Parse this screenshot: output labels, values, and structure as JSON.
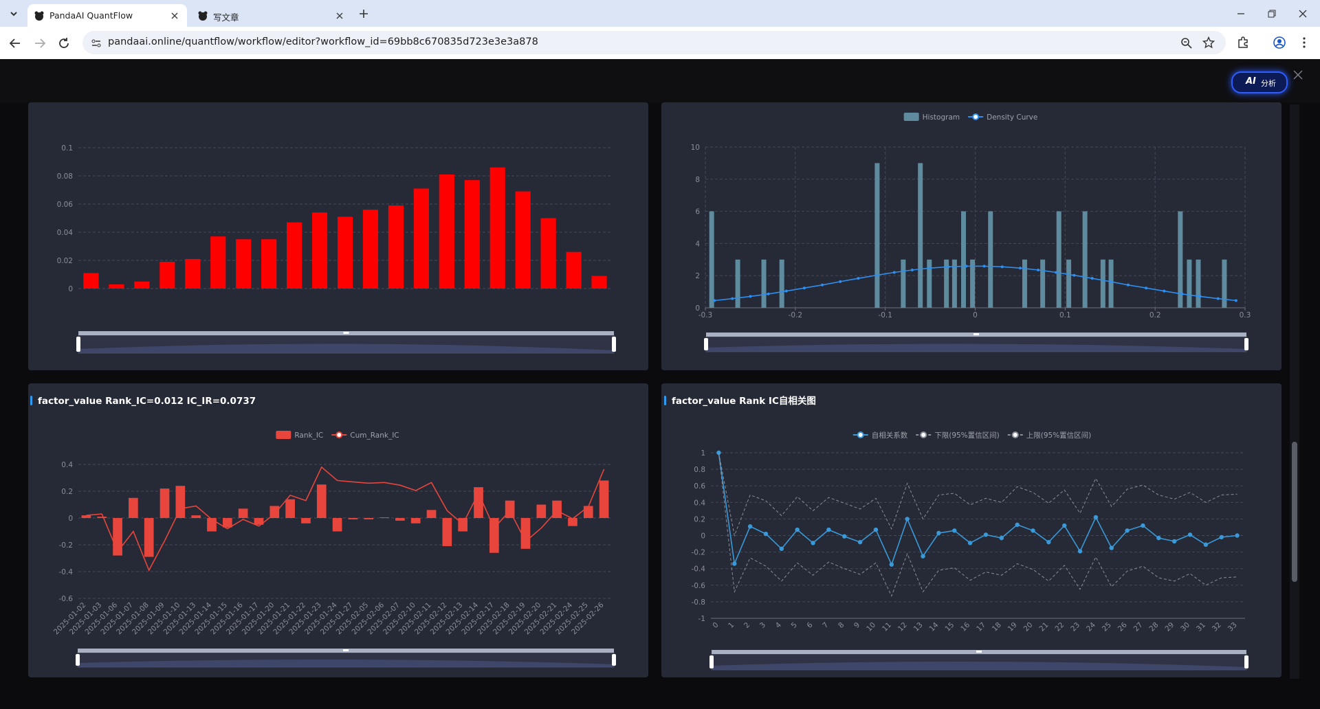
{
  "browser": {
    "tabs": [
      {
        "title": "PandaAI QuantFlow"
      },
      {
        "title": "写文章"
      }
    ],
    "url": "pandaai.online/quantflow/workflow/editor?workflow_id=69bb8c670835d723e3e3a878"
  },
  "toolbar": {
    "ai_button": {
      "badge": "AI",
      "label": "分析"
    }
  },
  "chart_data": [
    {
      "type": "bar",
      "color": "#ff0000",
      "grid": true,
      "values": [
        0.011,
        0.003,
        0.005,
        0.019,
        0.021,
        0.037,
        0.035,
        0.035,
        0.047,
        0.054,
        0.051,
        0.056,
        0.059,
        0.071,
        0.081,
        0.077,
        0.086,
        0.069,
        0.05,
        0.026,
        0.009
      ],
      "ylim": [
        0,
        0.1
      ],
      "yticks": [
        0,
        0.02,
        0.04,
        0.06,
        0.08,
        0.1
      ]
    },
    {
      "type": "combo",
      "grid": true,
      "xgrid": true,
      "legend": "top",
      "xlim": [
        -0.3,
        0.3
      ],
      "xticks": [
        -0.3,
        -0.2,
        -0.1,
        0,
        0.1,
        0.2,
        0.3
      ],
      "ylim": [
        0,
        10
      ],
      "yticks": [
        0,
        2,
        4,
        6,
        8,
        10
      ],
      "series": [
        {
          "name": "Histogram",
          "type": "bar",
          "color": "#5e8b9e",
          "x": [
            -0.293,
            -0.264,
            -0.235,
            -0.215,
            -0.109,
            -0.08,
            -0.061,
            -0.051,
            -0.032,
            -0.023,
            -0.013,
            -0.003,
            0.017,
            0.055,
            0.075,
            0.093,
            0.104,
            0.122,
            0.142,
            0.151,
            0.228,
            0.238,
            0.248,
            0.277
          ],
          "values": [
            6,
            3,
            3,
            3,
            9,
            3,
            9,
            3,
            3,
            3,
            6,
            3,
            6,
            3,
            3,
            6,
            3,
            6,
            3,
            3,
            6,
            3,
            3,
            3
          ]
        },
        {
          "name": "Density Curve",
          "type": "line",
          "color": "#2e8fef",
          "markers": true,
          "x": [
            -0.29,
            -0.27,
            -0.25,
            -0.23,
            -0.21,
            -0.19,
            -0.17,
            -0.15,
            -0.13,
            -0.11,
            -0.09,
            -0.07,
            -0.05,
            -0.03,
            -0.01,
            0.01,
            0.03,
            0.05,
            0.07,
            0.09,
            0.11,
            0.13,
            0.15,
            0.17,
            0.19,
            0.21,
            0.23,
            0.25,
            0.27,
            0.29
          ],
          "values": [
            0.45,
            0.57,
            0.71,
            0.86,
            1.04,
            1.23,
            1.42,
            1.63,
            1.83,
            2.02,
            2.2,
            2.35,
            2.47,
            2.55,
            2.59,
            2.59,
            2.55,
            2.47,
            2.35,
            2.2,
            2.02,
            1.83,
            1.63,
            1.42,
            1.23,
            1.04,
            0.86,
            0.71,
            0.57,
            0.45
          ]
        }
      ]
    },
    {
      "type": "combo",
      "title": "factor_value Rank_IC=0.012 IC_IR=0.0737",
      "grid": true,
      "legend": "top",
      "categories": [
        "2025-01-02",
        "2025-01-03",
        "2025-01-06",
        "2025-01-07",
        "2025-01-08",
        "2025-01-09",
        "2025-01-10",
        "2025-01-13",
        "2025-01-14",
        "2025-01-15",
        "2025-01-16",
        "2025-01-17",
        "2025-01-20",
        "2025-01-21",
        "2025-01-22",
        "2025-01-23",
        "2025-01-24",
        "2025-01-27",
        "2025-02-05",
        "2025-02-06",
        "2025-02-07",
        "2025-02-10",
        "2025-02-11",
        "2025-02-12",
        "2025-02-13",
        "2025-02-14",
        "2025-02-17",
        "2025-02-18",
        "2025-02-19",
        "2025-02-20",
        "2025-02-21",
        "2025-02-24",
        "2025-02-25",
        "2025-02-26"
      ],
      "ylim": [
        -0.6,
        0.4
      ],
      "yticks": [
        -0.6,
        -0.4,
        -0.2,
        0,
        0.2,
        0.4
      ],
      "series": [
        {
          "name": "Rank_IC",
          "type": "bar",
          "color": "#e8453c",
          "values": [
            0.02,
            0.01,
            -0.28,
            0.15,
            -0.29,
            0.22,
            0.24,
            0.02,
            -0.1,
            -0.07,
            0.07,
            -0.05,
            0.09,
            0.14,
            -0.04,
            0.25,
            -0.1,
            -0.01,
            -0.01,
            0.005,
            -0.02,
            -0.04,
            0.06,
            -0.21,
            -0.1,
            0.23,
            -0.26,
            0.13,
            -0.23,
            0.1,
            0.13,
            -0.06,
            0.09,
            0.28
          ]
        },
        {
          "name": "Cum_Rank_IC",
          "type": "line",
          "color": "#e8453c",
          "values": [
            0.02,
            0.03,
            -0.25,
            -0.1,
            -0.39,
            -0.17,
            0.07,
            0.09,
            -0.01,
            -0.08,
            -0.01,
            -0.06,
            0.03,
            0.17,
            0.13,
            0.38,
            0.28,
            0.27,
            0.26,
            0.265,
            0.245,
            0.205,
            0.265,
            0.055,
            -0.045,
            0.185,
            -0.075,
            0.055,
            -0.175,
            -0.075,
            0.055,
            -0.005,
            0.085,
            0.365
          ]
        }
      ]
    },
    {
      "type": "line",
      "title": "factor_value Rank IC自相关图",
      "grid": true,
      "legend": "top",
      "categories": [
        "0",
        "1",
        "2",
        "3",
        "4",
        "5",
        "6",
        "7",
        "8",
        "9",
        "10",
        "11",
        "12",
        "13",
        "14",
        "15",
        "16",
        "17",
        "18",
        "19",
        "20",
        "21",
        "22",
        "23",
        "24",
        "25",
        "26",
        "27",
        "28",
        "29",
        "30",
        "31",
        "32",
        "33"
      ],
      "ylim": [
        -1,
        1
      ],
      "yticks": [
        -1,
        -0.8,
        -0.6,
        -0.4,
        -0.2,
        0,
        0.2,
        0.4,
        0.6,
        0.8,
        1
      ],
      "series": [
        {
          "name": "自相关系数",
          "type": "line",
          "color": "#3a9ad9",
          "markers": true,
          "values": [
            1,
            -0.34,
            0.11,
            0.02,
            -0.16,
            0.07,
            -0.09,
            0.07,
            -0.01,
            -0.08,
            0.07,
            -0.35,
            0.2,
            -0.25,
            0.03,
            0.06,
            -0.09,
            0.01,
            -0.03,
            0.13,
            0.06,
            -0.08,
            0.12,
            -0.19,
            0.22,
            -0.15,
            0.06,
            0.12,
            -0.03,
            -0.07,
            0.01,
            -0.11,
            -0.02,
            0
          ]
        },
        {
          "name": "下限(95%置信区间)",
          "type": "line",
          "color": "#8a8f99",
          "dash": true,
          "values": [
            1,
            -0.68,
            -0.27,
            -0.37,
            -0.55,
            -0.33,
            -0.48,
            -0.32,
            -0.4,
            -0.47,
            -0.33,
            -0.73,
            -0.22,
            -0.68,
            -0.42,
            -0.39,
            -0.54,
            -0.44,
            -0.48,
            -0.34,
            -0.41,
            -0.55,
            -0.36,
            -0.65,
            -0.26,
            -0.62,
            -0.43,
            -0.37,
            -0.51,
            -0.55,
            -0.46,
            -0.6,
            -0.51,
            -0.5
          ]
        },
        {
          "name": "上限(95%置信区间)",
          "type": "line",
          "color": "#8a8f99",
          "dash": true,
          "values": [
            1,
            0,
            0.49,
            0.42,
            0.24,
            0.47,
            0.3,
            0.46,
            0.39,
            0.32,
            0.45,
            0.08,
            0.63,
            0.2,
            0.49,
            0.51,
            0.37,
            0.45,
            0.4,
            0.59,
            0.52,
            0.39,
            0.55,
            0.27,
            0.69,
            0.35,
            0.56,
            0.61,
            0.49,
            0.44,
            0.52,
            0.4,
            0.49,
            0.5
          ]
        }
      ]
    }
  ]
}
